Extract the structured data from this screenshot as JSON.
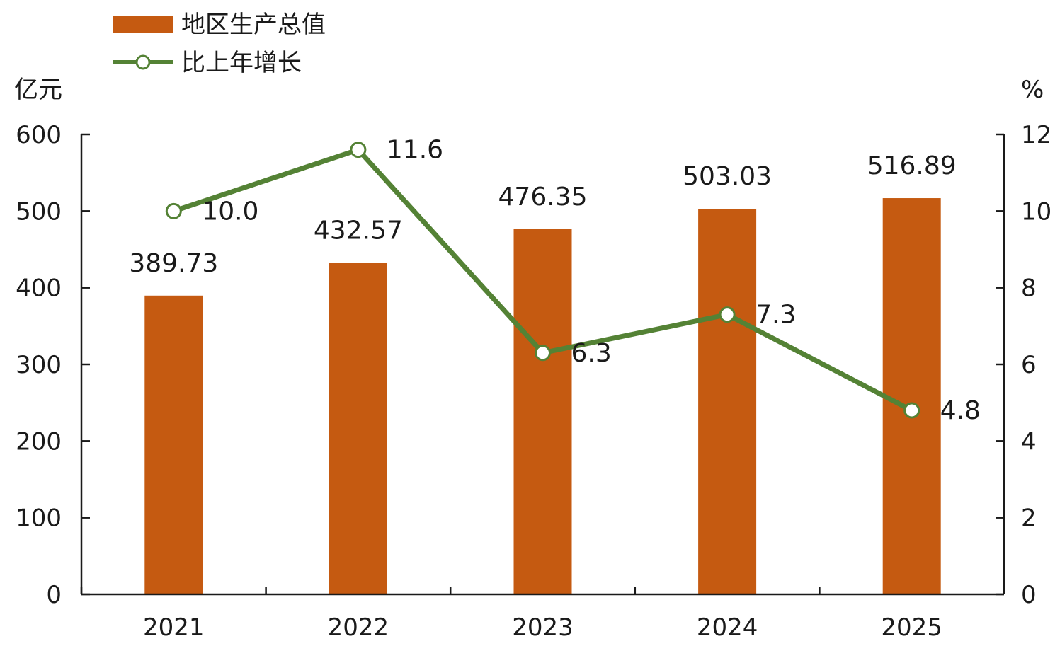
{
  "chart_data": {
    "type": "bar",
    "categories": [
      "2021",
      "2022",
      "2023",
      "2024",
      "2025"
    ],
    "series": [
      {
        "name": "地区生产总值",
        "type": "bar",
        "axis": "left",
        "color": "#c55a11",
        "values": [
          389.73,
          432.57,
          476.35,
          503.03,
          516.89
        ],
        "labels": [
          "389.73",
          "432.57",
          "476.35",
          "503.03",
          "516.89"
        ]
      },
      {
        "name": "比上年增长",
        "type": "line",
        "axis": "right",
        "color": "#548235",
        "values": [
          10.0,
          11.6,
          6.3,
          7.3,
          4.8
        ],
        "labels": [
          "10.0",
          "11.6",
          "6.3",
          "7.3",
          "4.8"
        ]
      }
    ],
    "y_left": {
      "unit": "亿元",
      "ylim": [
        0,
        600
      ],
      "ticks": [
        "0",
        "100",
        "200",
        "300",
        "400",
        "500",
        "600"
      ]
    },
    "y_right": {
      "unit": "%",
      "ylim": [
        0,
        12
      ],
      "ticks": [
        "0",
        "2",
        "4",
        "6",
        "8",
        "10",
        "12"
      ]
    },
    "legend_position": "top-left",
    "grid": false
  }
}
